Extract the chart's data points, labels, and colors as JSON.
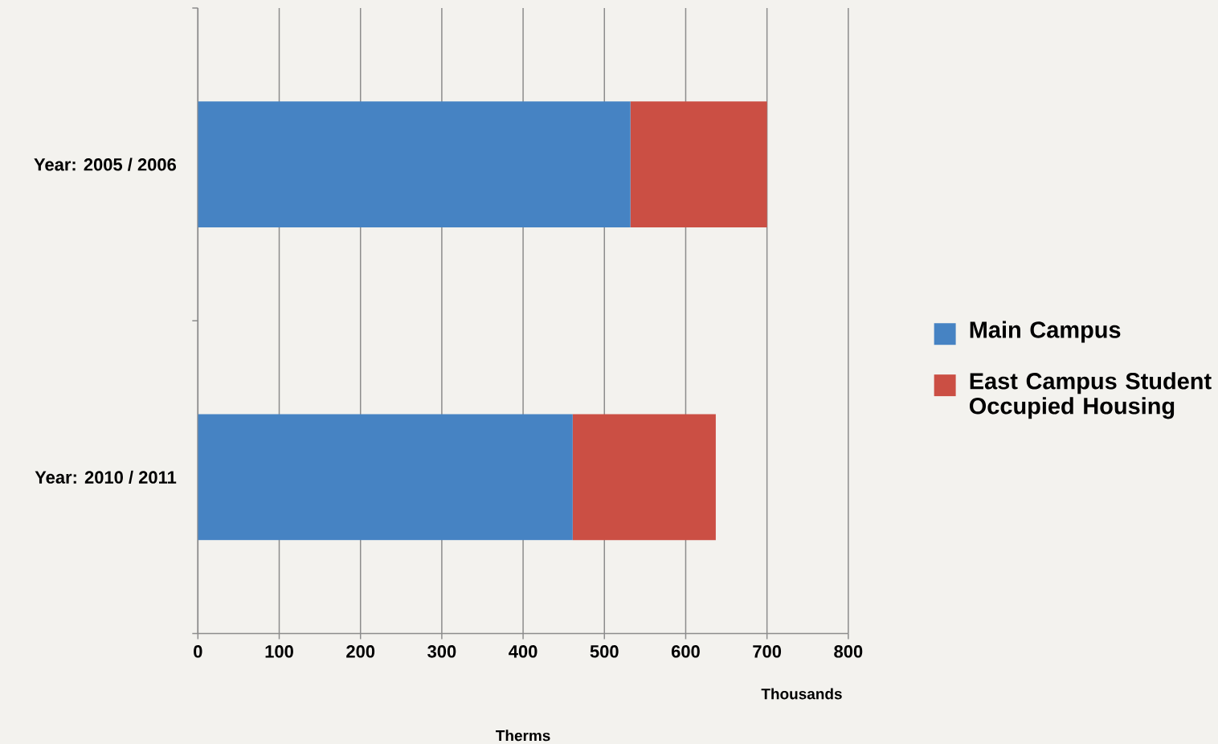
{
  "chart_data": {
    "type": "bar",
    "orientation": "horizontal",
    "stacked": true,
    "categories": [
      "Year: 2005 / 2006",
      "Year: 2010 / 2011"
    ],
    "series": [
      {
        "name": "Main Campus",
        "color": "#4683c3",
        "values": [
          532,
          461
        ]
      },
      {
        "name": "East Campus Student Occupied Housing",
        "color": "#cb4f44",
        "values": [
          168,
          176
        ]
      }
    ],
    "xlim": [
      0,
      800
    ],
    "xticks": [
      0,
      100,
      200,
      300,
      400,
      500,
      600,
      700,
      800
    ],
    "xlabel": "Therms",
    "annotations": [
      "Thousands"
    ],
    "grid": "x",
    "legend": "right"
  }
}
